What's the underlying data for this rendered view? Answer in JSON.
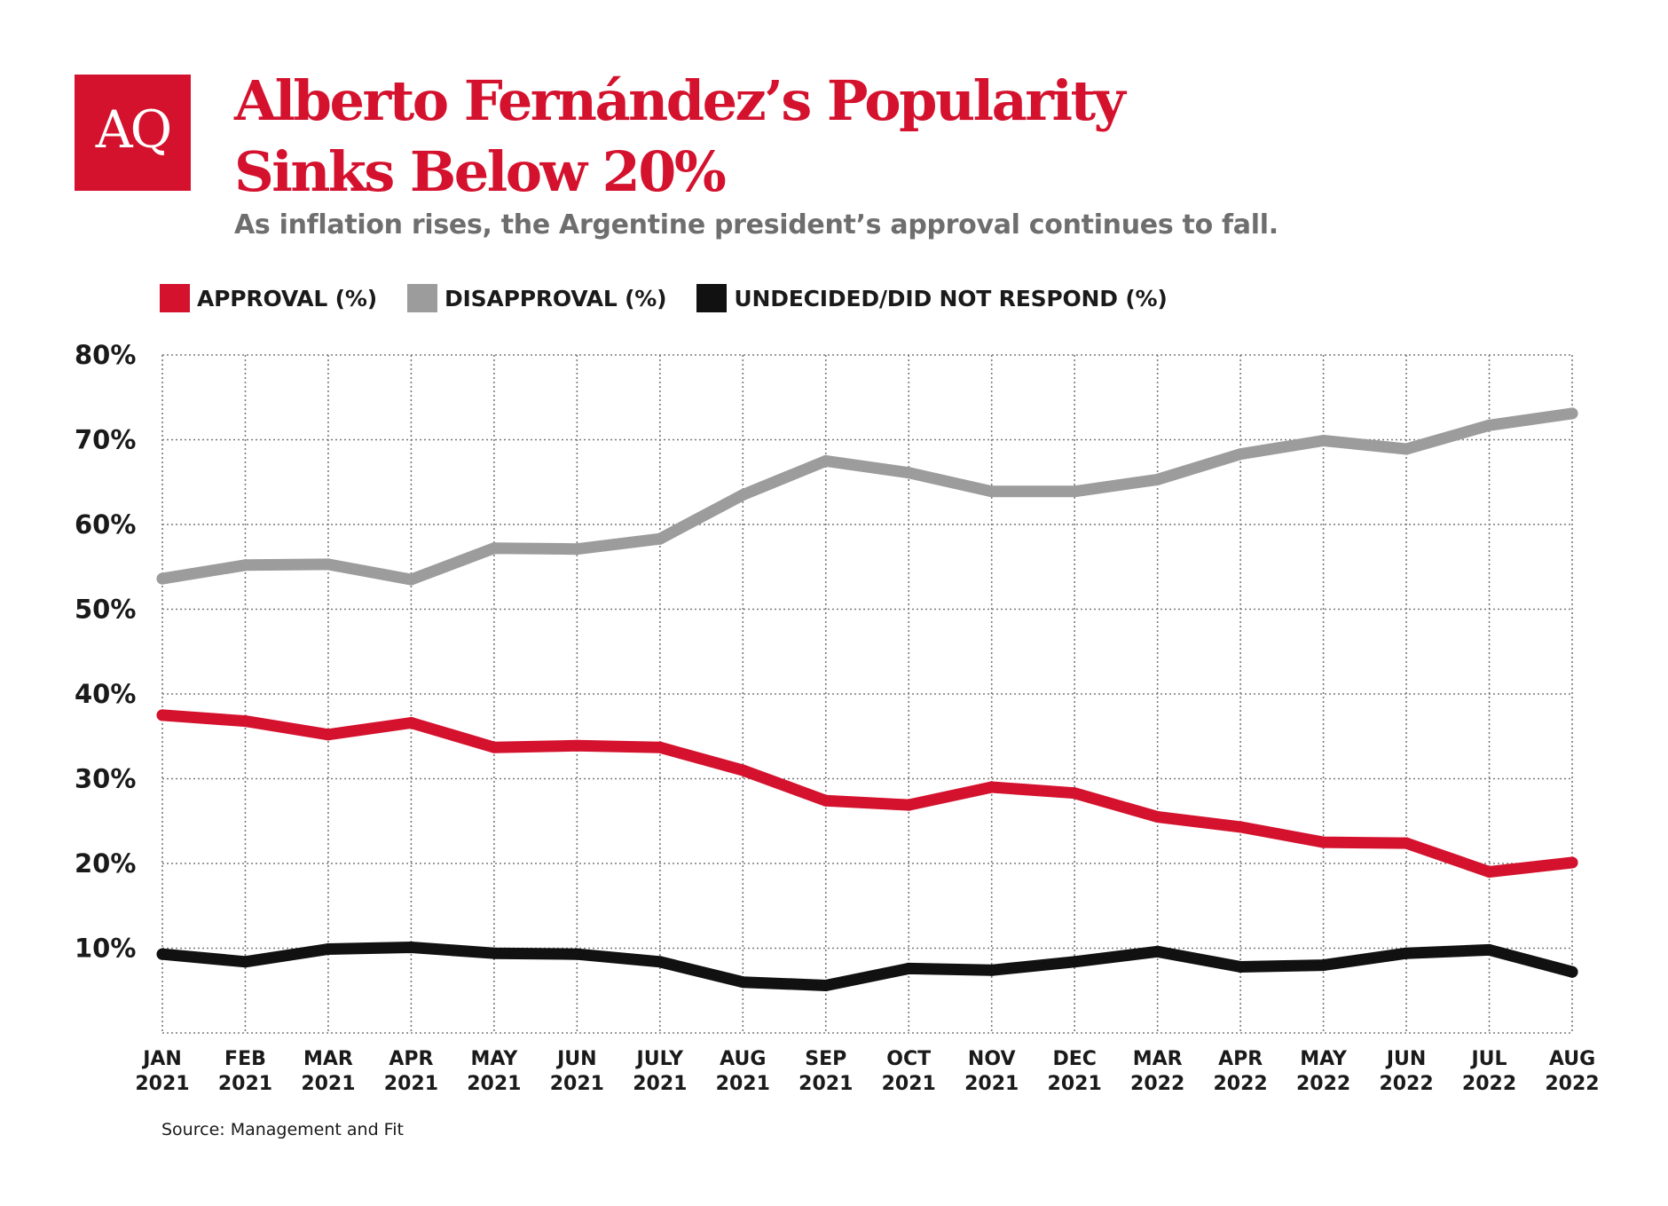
{
  "logo": {
    "text": "AQ",
    "color": "#d4122e"
  },
  "title_lines": [
    "Alberto Fernández’s Popularity",
    "Sinks Below 20%"
  ],
  "subtitle": "As inflation rises, the Argentine president’s approval continues to fall.",
  "legend": [
    {
      "label": "APPROVAL (%)",
      "color": "#d4122e"
    },
    {
      "label": "DISAPPROVAL (%)",
      "color": "#9c9c9c"
    },
    {
      "label": "UNDECIDED/DID NOT RESPOND (%)",
      "color": "#111111"
    }
  ],
  "source": "Source: Management and Fit",
  "chart_data": {
    "type": "line",
    "title": "Alberto Fernández’s Popularity Sinks Below 20%",
    "subtitle": "As inflation rises, the Argentine president’s approval continues to fall.",
    "categories": [
      [
        "JAN",
        "2021"
      ],
      [
        "FEB",
        "2021"
      ],
      [
        "MAR",
        "2021"
      ],
      [
        "APR",
        "2021"
      ],
      [
        "MAY",
        "2021"
      ],
      [
        "JUN",
        "2021"
      ],
      [
        "JULY",
        "2021"
      ],
      [
        "AUG",
        "2021"
      ],
      [
        "SEP",
        "2021"
      ],
      [
        "OCT",
        "2021"
      ],
      [
        "NOV",
        "2021"
      ],
      [
        "DEC",
        "2021"
      ],
      [
        "MAR",
        "2022"
      ],
      [
        "APR",
        "2022"
      ],
      [
        "MAY",
        "2022"
      ],
      [
        "JUN",
        "2022"
      ],
      [
        "JUL",
        "2022"
      ],
      [
        "AUG",
        "2022"
      ]
    ],
    "series": [
      {
        "name": "APPROVAL (%)",
        "color": "#d4122e",
        "values": [
          37.5,
          36.8,
          35.2,
          36.6,
          33.7,
          33.9,
          33.7,
          31.0,
          27.4,
          26.9,
          29.0,
          28.3,
          25.5,
          24.3,
          22.5,
          22.4,
          19.0,
          20.1
        ]
      },
      {
        "name": "DISAPPROVAL (%)",
        "color": "#9c9c9c",
        "values": [
          53.6,
          55.2,
          55.3,
          53.5,
          57.2,
          57.1,
          58.3,
          63.5,
          67.5,
          66.1,
          63.9,
          63.9,
          65.3,
          68.3,
          69.9,
          68.9,
          71.7,
          73.1
        ]
      },
      {
        "name": "UNDECIDED/DID NOT RESPOND (%)",
        "color": "#111111",
        "values": [
          9.3,
          8.4,
          9.9,
          10.1,
          9.4,
          9.3,
          8.4,
          6.0,
          5.6,
          7.6,
          7.4,
          8.4,
          9.6,
          7.8,
          8.0,
          9.4,
          9.8,
          7.2
        ]
      }
    ],
    "yticks": [
      10,
      20,
      30,
      40,
      50,
      60,
      70,
      80
    ],
    "ytick_labels": [
      "10%",
      "20%",
      "30%",
      "40%",
      "50%",
      "60%",
      "70%",
      "80%"
    ],
    "ylim": [
      0,
      80
    ],
    "grid": true,
    "legend_position": "top-left"
  }
}
